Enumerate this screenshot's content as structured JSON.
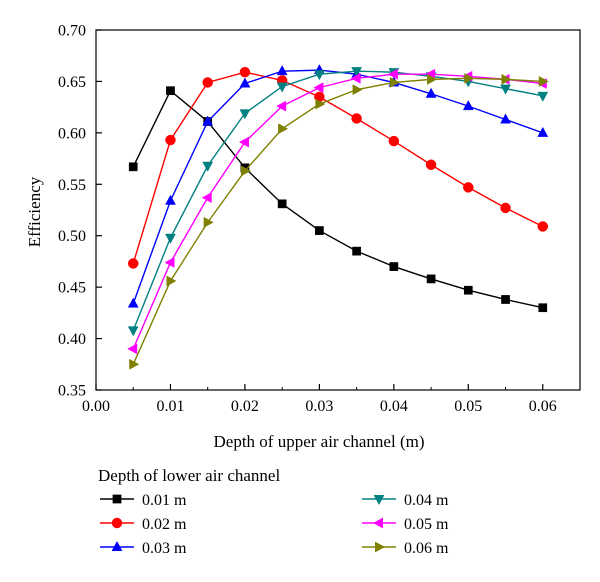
{
  "chart_data": {
    "type": "line",
    "xlabel": "Depth of upper air channel (m)",
    "ylabel": "Efficiency",
    "xlim": [
      0.0,
      0.065
    ],
    "ylim": [
      0.35,
      0.7
    ],
    "x_ticks": [
      "0.00",
      "0.01",
      "0.02",
      "0.03",
      "0.04",
      "0.05",
      "0.06"
    ],
    "y_ticks": [
      "0.35",
      "0.40",
      "0.45",
      "0.50",
      "0.55",
      "0.60",
      "0.65",
      "0.70"
    ],
    "legend_title": "Depth of lower air channel",
    "legend_position": "bottom",
    "grid": false,
    "x": [
      0.005,
      0.01,
      0.015,
      0.02,
      0.025,
      0.03,
      0.035,
      0.04,
      0.045,
      0.05,
      0.055,
      0.06
    ],
    "series": [
      {
        "name": "0.01 m",
        "color": "#000000",
        "marker": "square",
        "values": [
          0.567,
          0.641,
          0.611,
          0.566,
          0.531,
          0.505,
          0.485,
          0.47,
          0.458,
          0.447,
          0.438,
          0.43
        ]
      },
      {
        "name": "0.02 m",
        "color": "#ff0000",
        "marker": "circle",
        "values": [
          0.473,
          0.593,
          0.649,
          0.659,
          0.651,
          0.635,
          0.614,
          0.592,
          0.569,
          0.547,
          0.527,
          0.509
        ]
      },
      {
        "name": "0.03 m",
        "color": "#0000ff",
        "marker": "triangle-up",
        "values": [
          0.434,
          0.534,
          0.611,
          0.648,
          0.66,
          0.661,
          0.657,
          0.649,
          0.638,
          0.626,
          0.613,
          0.6
        ]
      },
      {
        "name": "0.04 m",
        "color": "#008080",
        "marker": "triangle-down",
        "values": [
          0.408,
          0.498,
          0.568,
          0.619,
          0.645,
          0.657,
          0.66,
          0.659,
          0.655,
          0.65,
          0.643,
          0.636
        ]
      },
      {
        "name": "0.05 m",
        "color": "#ff00ff",
        "marker": "triangle-left",
        "values": [
          0.39,
          0.474,
          0.537,
          0.591,
          0.626,
          0.644,
          0.653,
          0.657,
          0.657,
          0.655,
          0.652,
          0.648
        ]
      },
      {
        "name": "0.06 m",
        "color": "#808000",
        "marker": "triangle-right",
        "values": [
          0.375,
          0.456,
          0.513,
          0.563,
          0.604,
          0.628,
          0.642,
          0.649,
          0.652,
          0.653,
          0.652,
          0.65
        ]
      }
    ]
  }
}
